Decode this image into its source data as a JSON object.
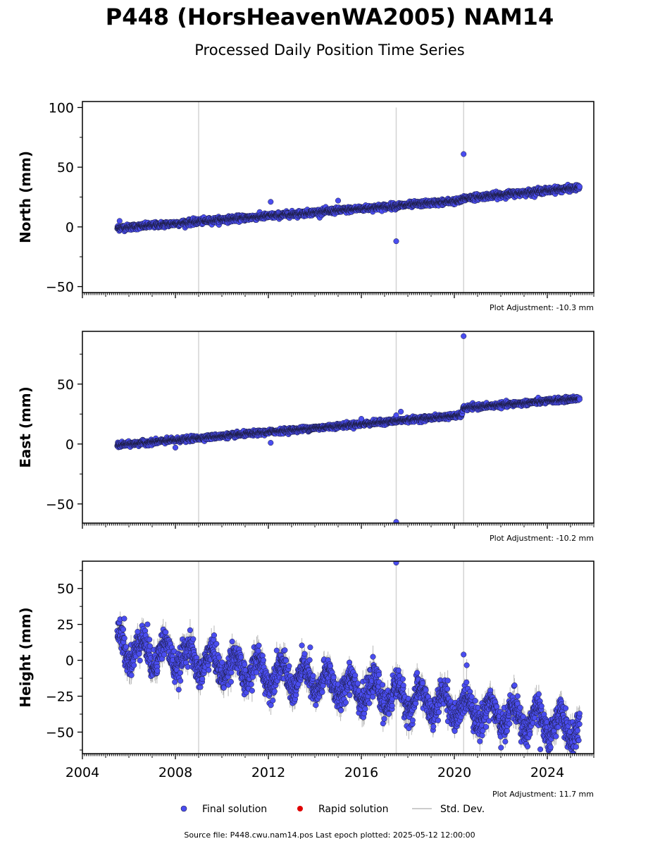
{
  "title": "P448 (HorsHeavenWA2005) NAM14",
  "subtitle": "Processed Daily Position Time Series",
  "colors": {
    "final": "#4a4df0",
    "final_edge": "#1a1a3a",
    "rapid": "#e00000",
    "stddev": "#cccccc",
    "event_line": "#d3d3d3"
  },
  "legend": {
    "final": "Final solution",
    "rapid": "Rapid solution",
    "stddev": "Std. Dev."
  },
  "source_text": "Source file: P448.cwu.nam14.pos  Last epoch plotted: 2025-05-12 12:00:00",
  "chart_data": [
    {
      "type": "scatter",
      "ylabel": "North (mm)",
      "xlim": [
        2004,
        2026
      ],
      "ylim": [
        -55,
        105
      ],
      "yticks": [
        -50,
        0,
        50,
        100
      ],
      "xticks": [
        2004,
        2008,
        2012,
        2016,
        2020,
        2024
      ],
      "event_lines": [
        2009.0,
        2017.5,
        2020.4
      ],
      "adjustment": "Plot Adjustment: -10.3 mm",
      "series": [
        {
          "trend": [
            [
              2005.5,
              -1
            ],
            [
              2020.3,
              22
            ],
            [
              2020.4,
              24
            ],
            [
              2025.4,
              33
            ]
          ],
          "noise": 1.2,
          "outliers": [
            [
              2005.6,
              5
            ],
            [
              2012.1,
              21
            ],
            [
              2015.0,
              22
            ],
            [
              2017.5,
              -12
            ],
            [
              2020.4,
              61
            ]
          ]
        }
      ]
    },
    {
      "type": "scatter",
      "ylabel": "East (mm)",
      "xlim": [
        2004,
        2026
      ],
      "ylim": [
        -66,
        94
      ],
      "yticks": [
        -50,
        0,
        50
      ],
      "xticks": [
        2004,
        2008,
        2012,
        2016,
        2020,
        2024
      ],
      "event_lines": [
        2009.0,
        2017.5,
        2020.4
      ],
      "adjustment": "Plot Adjustment: -10.2 mm",
      "series": [
        {
          "trend": [
            [
              2005.5,
              -1
            ],
            [
              2020.3,
              24
            ],
            [
              2020.4,
              30
            ],
            [
              2025.4,
              38
            ]
          ],
          "noise": 1.0,
          "outliers": [
            [
              2008.0,
              -3
            ],
            [
              2012.1,
              1
            ],
            [
              2016.0,
              21
            ],
            [
              2017.5,
              24
            ],
            [
              2017.7,
              27
            ],
            [
              2017.5,
              -65
            ],
            [
              2020.4,
              90
            ]
          ]
        }
      ]
    },
    {
      "type": "scatter",
      "ylabel": "Height (mm)",
      "xlim": [
        2004,
        2026
      ],
      "ylim": [
        -65,
        69
      ],
      "yticks": [
        -50,
        -25,
        0,
        25,
        50
      ],
      "xticks": [
        2004,
        2008,
        2012,
        2016,
        2020,
        2024
      ],
      "event_lines": [
        2009.0,
        2017.5,
        2020.4
      ],
      "adjustment": "Plot Adjustment: 11.7 mm",
      "series": [
        {
          "trend": [
            [
              2005.5,
              10
            ],
            [
              2025.4,
              -48
            ]
          ],
          "seasonal_amplitude": 9,
          "noise": 5,
          "outliers": [
            [
              2005.8,
              29
            ],
            [
              2006.8,
              25
            ],
            [
              2013.8,
              9
            ],
            [
              2017.6,
              -7
            ],
            [
              2017.5,
              68
            ],
            [
              2020.4,
              4
            ],
            [
              2023.7,
              -62
            ],
            [
              2025.1,
              -65
            ]
          ]
        }
      ]
    }
  ]
}
